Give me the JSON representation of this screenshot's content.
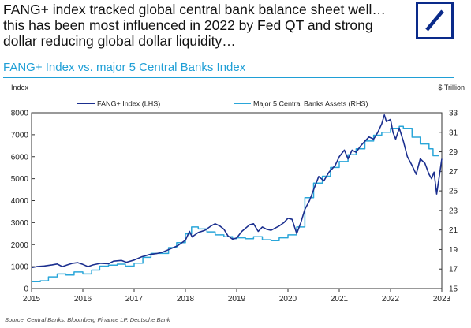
{
  "header": {
    "title_lines": [
      "FANG+ index tracked global central bank balance sheet well…",
      "this has been most influenced in 2022 by Fed QT and strong",
      "dollar reducing global dollar liquidity…"
    ],
    "subtitle": "FANG+ Index vs. major 5 Central Banks Index",
    "source": "Source: Central Banks, Bloomberg Finance LP, Deutsche Bank"
  },
  "colors": {
    "accent": "#1f9fd6",
    "fang": "#1b2f8f",
    "cb": "#2aa6d9",
    "logo": "#0a2a8a"
  },
  "logo_icon": "deutsche-bank-slash-logo",
  "chart_data": {
    "type": "line",
    "ylabel": "Index",
    "y2label": "$ Trillion",
    "ylim": [
      0,
      8000
    ],
    "y2lim": [
      15,
      33
    ],
    "xlim": [
      2015,
      2023
    ],
    "xticks": [
      "2015",
      "2016",
      "2017",
      "2018",
      "2019",
      "2020",
      "2021",
      "2022",
      "2023"
    ],
    "yticks": [
      "0",
      "1000",
      "2000",
      "3000",
      "4000",
      "5000",
      "6000",
      "7000",
      "8000"
    ],
    "y2ticks": [
      "15",
      "17",
      "19",
      "21",
      "23",
      "25",
      "27",
      "29",
      "31",
      "33"
    ],
    "legend_position": "top-center",
    "grid": false,
    "series": [
      {
        "name": "FANG+ Index (LHS)",
        "axis": "left",
        "points": [
          [
            2015.0,
            950
          ],
          [
            2015.1,
            1000
          ],
          [
            2015.25,
            1030
          ],
          [
            2015.4,
            1080
          ],
          [
            2015.5,
            1120
          ],
          [
            2015.6,
            1000
          ],
          [
            2015.7,
            1080
          ],
          [
            2015.8,
            1150
          ],
          [
            2015.9,
            1180
          ],
          [
            2016.0,
            1100
          ],
          [
            2016.1,
            1000
          ],
          [
            2016.2,
            1080
          ],
          [
            2016.35,
            1150
          ],
          [
            2016.5,
            1130
          ],
          [
            2016.6,
            1250
          ],
          [
            2016.75,
            1280
          ],
          [
            2016.85,
            1200
          ],
          [
            2017.0,
            1300
          ],
          [
            2017.15,
            1450
          ],
          [
            2017.3,
            1550
          ],
          [
            2017.45,
            1600
          ],
          [
            2017.55,
            1650
          ],
          [
            2017.7,
            1800
          ],
          [
            2017.85,
            1950
          ],
          [
            2018.0,
            2200
          ],
          [
            2018.08,
            2600
          ],
          [
            2018.13,
            2350
          ],
          [
            2018.25,
            2550
          ],
          [
            2018.38,
            2650
          ],
          [
            2018.5,
            2850
          ],
          [
            2018.58,
            2950
          ],
          [
            2018.67,
            2850
          ],
          [
            2018.75,
            2700
          ],
          [
            2018.83,
            2400
          ],
          [
            2018.92,
            2250
          ],
          [
            2019.0,
            2300
          ],
          [
            2019.1,
            2600
          ],
          [
            2019.25,
            2900
          ],
          [
            2019.33,
            2950
          ],
          [
            2019.42,
            2600
          ],
          [
            2019.5,
            2800
          ],
          [
            2019.58,
            2700
          ],
          [
            2019.67,
            2650
          ],
          [
            2019.75,
            2750
          ],
          [
            2019.83,
            2850
          ],
          [
            2019.92,
            3000
          ],
          [
            2020.0,
            3200
          ],
          [
            2020.08,
            3150
          ],
          [
            2020.17,
            2500
          ],
          [
            2020.25,
            3000
          ],
          [
            2020.33,
            3600
          ],
          [
            2020.42,
            4000
          ],
          [
            2020.5,
            4500
          ],
          [
            2020.6,
            5100
          ],
          [
            2020.7,
            4900
          ],
          [
            2020.8,
            5300
          ],
          [
            2020.92,
            5600
          ],
          [
            2021.0,
            6000
          ],
          [
            2021.1,
            6300
          ],
          [
            2021.17,
            5900
          ],
          [
            2021.25,
            6300
          ],
          [
            2021.33,
            6200
          ],
          [
            2021.42,
            6500
          ],
          [
            2021.5,
            6700
          ],
          [
            2021.58,
            6900
          ],
          [
            2021.67,
            6800
          ],
          [
            2021.75,
            7100
          ],
          [
            2021.83,
            7500
          ],
          [
            2021.88,
            7900
          ],
          [
            2021.92,
            7600
          ],
          [
            2022.0,
            7700
          ],
          [
            2022.05,
            7100
          ],
          [
            2022.1,
            6800
          ],
          [
            2022.17,
            7300
          ],
          [
            2022.25,
            6700
          ],
          [
            2022.33,
            6000
          ],
          [
            2022.42,
            5600
          ],
          [
            2022.5,
            5200
          ],
          [
            2022.58,
            5900
          ],
          [
            2022.67,
            5700
          ],
          [
            2022.75,
            5200
          ],
          [
            2022.8,
            5000
          ],
          [
            2022.85,
            5300
          ],
          [
            2022.9,
            4300
          ],
          [
            2022.95,
            5100
          ],
          [
            2023.0,
            5900
          ]
        ]
      },
      {
        "name": "Major 5 Central Banks Assets (RHS)",
        "axis": "right",
        "points": [
          [
            2015.0,
            15.7
          ],
          [
            2015.17,
            15.8
          ],
          [
            2015.33,
            16.2
          ],
          [
            2015.5,
            16.5
          ],
          [
            2015.67,
            16.4
          ],
          [
            2015.83,
            16.7
          ],
          [
            2016.0,
            16.5
          ],
          [
            2016.17,
            16.9
          ],
          [
            2016.33,
            17.3
          ],
          [
            2016.5,
            17.4
          ],
          [
            2016.67,
            17.5
          ],
          [
            2016.83,
            17.3
          ],
          [
            2017.0,
            17.6
          ],
          [
            2017.17,
            18.2
          ],
          [
            2017.33,
            18.6
          ],
          [
            2017.5,
            18.6
          ],
          [
            2017.67,
            19.2
          ],
          [
            2017.83,
            19.7
          ],
          [
            2018.0,
            20.6
          ],
          [
            2018.12,
            21.3
          ],
          [
            2018.25,
            21.1
          ],
          [
            2018.42,
            20.8
          ],
          [
            2018.58,
            20.5
          ],
          [
            2018.75,
            20.3
          ],
          [
            2018.92,
            20.1
          ],
          [
            2019.0,
            20.2
          ],
          [
            2019.17,
            20.1
          ],
          [
            2019.33,
            20.3
          ],
          [
            2019.5,
            20.0
          ],
          [
            2019.67,
            19.9
          ],
          [
            2019.83,
            20.2
          ],
          [
            2020.0,
            20.5
          ],
          [
            2020.17,
            21.3
          ],
          [
            2020.33,
            24.3
          ],
          [
            2020.5,
            25.8
          ],
          [
            2020.67,
            26.5
          ],
          [
            2020.83,
            27.4
          ],
          [
            2021.0,
            28.0
          ],
          [
            2021.17,
            28.7
          ],
          [
            2021.33,
            29.3
          ],
          [
            2021.5,
            30.1
          ],
          [
            2021.67,
            30.7
          ],
          [
            2021.83,
            31.0
          ],
          [
            2022.0,
            31.4
          ],
          [
            2022.17,
            31.6
          ],
          [
            2022.25,
            31.4
          ],
          [
            2022.42,
            30.5
          ],
          [
            2022.58,
            29.8
          ],
          [
            2022.75,
            29.3
          ],
          [
            2022.83,
            28.6
          ],
          [
            2022.95,
            28.6
          ]
        ]
      }
    ]
  }
}
